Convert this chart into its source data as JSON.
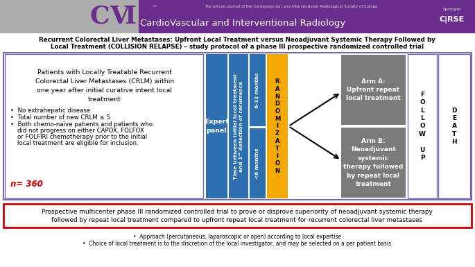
{
  "header_bg_color": "#6B2D8B",
  "header_logo_bg": "#ADADAD",
  "header_journal_text": "CardioVascular and Interventional Radiology",
  "header_subtitle": "The official journal of the Cardiovascular and Interventional Radiological Society of Europe",
  "header_cirse_text": "C│RSE",
  "title_line1": "Recurrent Colorectal Liver Metastases: Upfront Local Treatment versus Neoadjuvant Systemic Therapy Followed by",
  "title_line2": "Local Treatment (COLLISION RELAPSE) – study protocol of a phase III prospective randomized controlled trial",
  "diagram_border_color": "#7B68AA",
  "expert_panel_color": "#2E6FAF",
  "expert_panel_text": "Expert\npanel",
  "time_bar_color": "#2E6FAF",
  "months_612_color": "#2E6FAF",
  "months_612_text": "6-12 months",
  "months_lt6_color": "#2E6FAF",
  "months_lt6_text": "<6 months",
  "random_color": "#F5A800",
  "random_text": "R\nA\nN\nD\nO\nM\nI\nZ\nA\nT\nI\nO\nN",
  "arm_a_color": "#7A7A7A",
  "arm_a_text": "Arm A:\nUpfront repeat\nlocal treatment",
  "arm_b_color": "#7A7A7A",
  "arm_b_text": "Arm B:\nNeoadjuvant\nsystemic\ntherapy followed\nby repeat local\ntreatment",
  "follow_up_text": "F\nO\nL\nL\nO\nW\n \nU\nP",
  "death_text": "D\nE\nA\nT\nH",
  "bottom_box_text_line1": "Prospective multicenter phase III randomized controlled trial to prove or disprove superiority of neoadjuvant systemic therapy",
  "bottom_box_text_line2": "followed by repeat local treatment compared to upfront repeat local treatment for recurrent colorectal liver metastases",
  "bottom_box_border_color": "#CC0000",
  "footnote1": "Approach (percutaneous, laparoscopic or open) according to local expertise",
  "footnote2": "Choice of local treatment is to the discretion of the local investigator, and may be selected on a per patient basis",
  "bg_color": "#FFFFFF",
  "n_text": "n= 360",
  "n_color": "#CC0000"
}
